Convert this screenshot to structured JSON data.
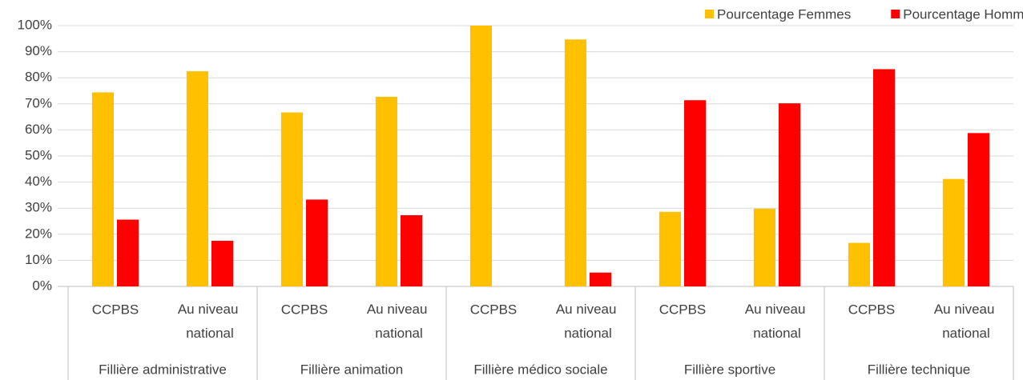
{
  "chart_data": {
    "type": "bar",
    "categories": [
      "CCPBS",
      "Au niveau national",
      "CCPBS",
      "Au niveau national",
      "CCPBS",
      "Au niveau national",
      "CCPBS",
      "Au niveau national",
      "CCPBS",
      "Au niveau national"
    ],
    "category_groups": [
      "Fillière administrative",
      "Fillière animation",
      "Fillière médico sociale",
      "Fillière sportive",
      "Fillière technique"
    ],
    "series": [
      {
        "name": "Pourcentage Femmes",
        "color": "#ffc000",
        "values": [
          74.4,
          82.5,
          66.7,
          72.7,
          100,
          94.7,
          28.6,
          29.8,
          16.7,
          41.2
        ]
      },
      {
        "name": "Pourcentage Hommes",
        "color": "#ff0000",
        "values": [
          25.6,
          17.5,
          33.3,
          27.3,
          0,
          5.3,
          71.4,
          70.2,
          83.3,
          58.8
        ]
      }
    ],
    "ylim": [
      0,
      100
    ],
    "yticks": [
      {
        "value": 0,
        "label": "0%"
      },
      {
        "value": 10,
        "label": "10%"
      },
      {
        "value": 20,
        "label": "20%"
      },
      {
        "value": 30,
        "label": "30%"
      },
      {
        "value": 40,
        "label": "40%"
      },
      {
        "value": 50,
        "label": "50%"
      },
      {
        "value": 60,
        "label": "60%"
      },
      {
        "value": 70,
        "label": "70%"
      },
      {
        "value": 80,
        "label": "80%"
      },
      {
        "value": 90,
        "label": "90%"
      },
      {
        "value": 100,
        "label": "100%"
      }
    ],
    "grid": true,
    "legend": "top-right"
  }
}
